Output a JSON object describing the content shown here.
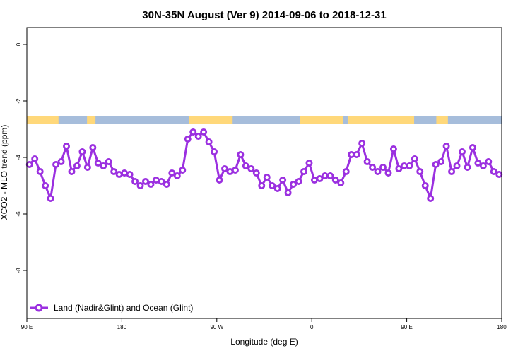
{
  "chart_data": {
    "type": "line",
    "title": "30N-35N August (Ver 9)   2014-09-06 to 2018-12-31",
    "xlabel": "Longitude (deg E)",
    "ylabel": "XCO2 - MLO trend (ppm)",
    "xlim": [
      90,
      540
    ],
    "ylim": [
      -9.7,
      0.6
    ],
    "x_ticks": [
      {
        "value": 90,
        "label": "90 E"
      },
      {
        "value": 180,
        "label": "180"
      },
      {
        "value": 270,
        "label": "90 W"
      },
      {
        "value": 360,
        "label": "0"
      },
      {
        "value": 450,
        "label": "90 E"
      },
      {
        "value": 540,
        "label": "180"
      }
    ],
    "y_ticks": [
      {
        "value": 0,
        "label": "0"
      },
      {
        "value": -2,
        "label": "-2"
      },
      {
        "value": -4,
        "label": "-4"
      },
      {
        "value": -6,
        "label": "-6"
      },
      {
        "value": -8,
        "label": "-8"
      }
    ],
    "grid": false,
    "legend": {
      "position": "bottom-left"
    },
    "series": [
      {
        "name": "Land (Nadir&Glint) and Ocean (Glint)",
        "color": "#9b30e0",
        "x": [
          92.5,
          97.5,
          102.5,
          107.5,
          112.5,
          117.5,
          122.5,
          127.5,
          132.5,
          137.5,
          142.5,
          147.5,
          152.5,
          157.5,
          162.5,
          167.5,
          172.5,
          177.5,
          182.5,
          187.5,
          192.5,
          197.5,
          202.5,
          207.5,
          212.5,
          217.5,
          222.5,
          227.5,
          232.5,
          237.5,
          242.5,
          247.5,
          252.5,
          257.5,
          262.5,
          267.5,
          272.5,
          277.5,
          282.5,
          287.5,
          292.5,
          297.5,
          302.5,
          307.5,
          312.5,
          317.5,
          322.5,
          327.5,
          332.5,
          337.5,
          342.5,
          347.5,
          352.5,
          357.5,
          362.5,
          367.5,
          372.5,
          377.5,
          382.5,
          387.5,
          392.5,
          397.5,
          402.5,
          407.5,
          412.5,
          417.5,
          422.5,
          427.5,
          432.5,
          437.5,
          442.5,
          447.5,
          452.5,
          457.5,
          462.5,
          467.5,
          472.5,
          477.5,
          482.5,
          487.5,
          492.5,
          497.5,
          502.5,
          507.5,
          512.5,
          517.5,
          522.5,
          527.5,
          532.5,
          537.5
        ],
        "y": [
          -4.25,
          -4.05,
          -4.5,
          -5.0,
          -5.45,
          -4.25,
          -4.15,
          -3.6,
          -4.5,
          -4.3,
          -3.8,
          -4.35,
          -3.65,
          -4.2,
          -4.3,
          -4.15,
          -4.5,
          -4.6,
          -4.55,
          -4.6,
          -4.85,
          -5.0,
          -4.85,
          -4.95,
          -4.8,
          -4.85,
          -4.95,
          -4.55,
          -4.65,
          -4.45,
          -3.35,
          -3.1,
          -3.25,
          -3.1,
          -3.45,
          -3.8,
          -4.8,
          -4.4,
          -4.5,
          -4.45,
          -3.9,
          -4.3,
          -4.4,
          -4.55,
          -5.0,
          -4.7,
          -5.0,
          -5.1,
          -4.8,
          -5.25,
          -4.95,
          -4.85,
          -4.5,
          -4.2,
          -4.8,
          -4.75,
          -4.65,
          -4.65,
          -4.8,
          -4.9,
          -4.5,
          -3.9,
          -3.9,
          -3.5,
          -4.15,
          -4.35,
          -4.5,
          -4.35,
          -4.55,
          -3.7,
          -4.4,
          -4.3,
          -4.3,
          -4.05,
          -4.5,
          -5.0,
          -5.45,
          -4.25,
          -4.15,
          -3.6,
          -4.5,
          -4.3,
          -3.8,
          -4.35,
          -3.65,
          -4.2,
          -4.3,
          -4.15,
          -4.5,
          -4.6
        ]
      }
    ],
    "land_ocean_band": {
      "y_range": [
        -2.55,
        -2.8
      ],
      "colors": {
        "ocean": "#a6bddb",
        "land": "#ffd87a"
      },
      "land_x_ranges": [
        [
          90,
          120
        ],
        [
          147,
          150
        ],
        [
          149,
          154
        ],
        [
          150,
          155
        ],
        [
          153,
          155
        ],
        [
          152,
          152
        ],
        [
          244,
          285
        ],
        [
          349,
          390
        ],
        [
          394,
          396
        ],
        [
          396,
          457
        ],
        [
          478,
          489
        ]
      ]
    }
  }
}
